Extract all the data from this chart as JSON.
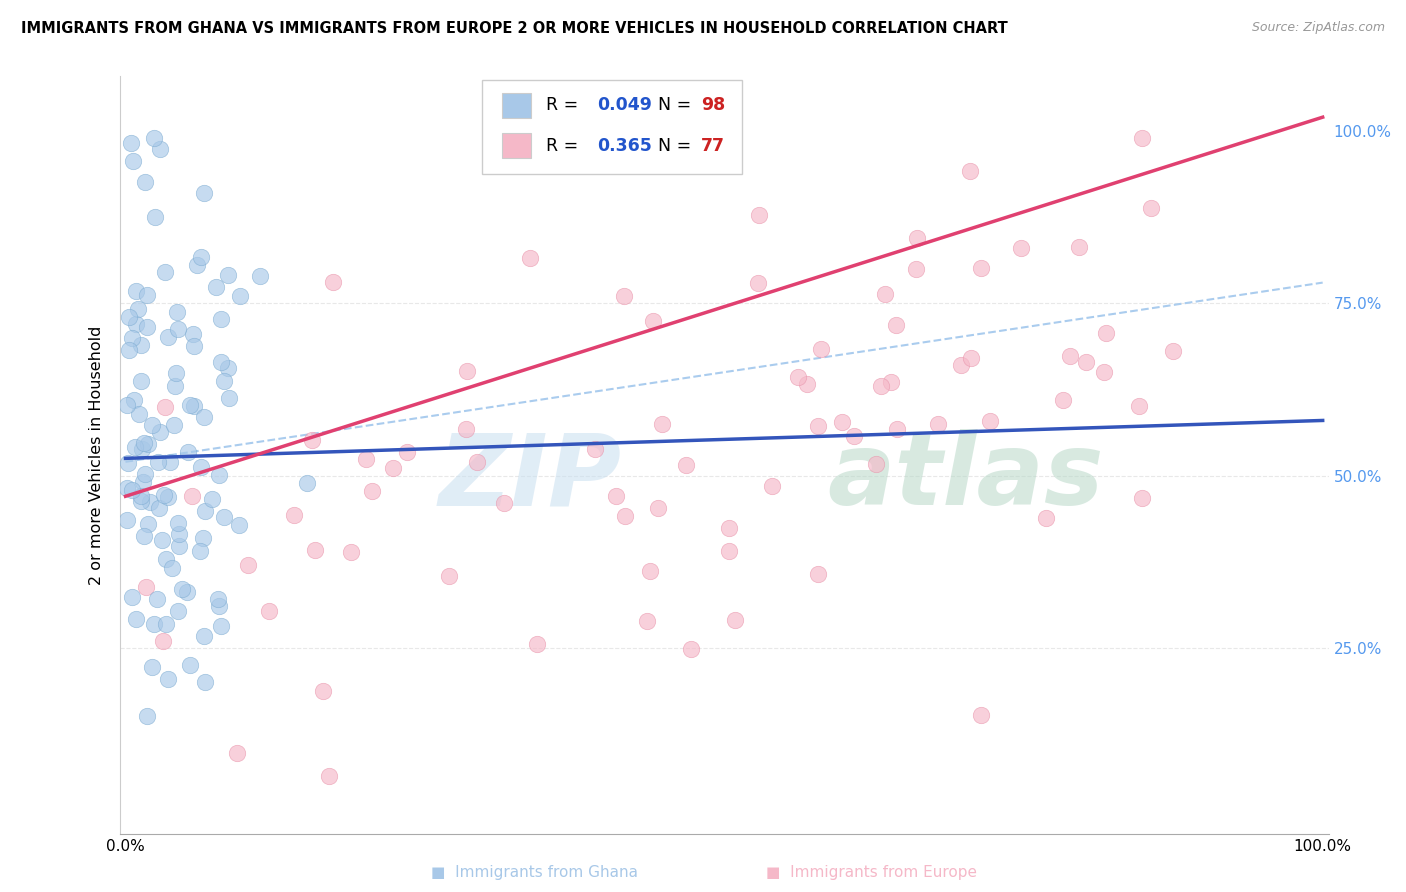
{
  "title": "IMMIGRANTS FROM GHANA VS IMMIGRANTS FROM EUROPE 2 OR MORE VEHICLES IN HOUSEHOLD CORRELATION CHART",
  "source": "Source: ZipAtlas.com",
  "ylabel": "2 or more Vehicles in Household",
  "ghana_color": "#a8c8e8",
  "ghana_edge_color": "#7aaad0",
  "europe_color": "#f5b8c8",
  "europe_edge_color": "#e890a8",
  "ghana_line_color": "#3355bb",
  "europe_line_color": "#e04070",
  "dash_line_color": "#aaccee",
  "R_color": "#2255cc",
  "N_color": "#cc2222",
  "grid_color": "#e8e8e8",
  "ghana_R": 0.049,
  "ghana_N": 98,
  "europe_R": 0.365,
  "europe_N": 77,
  "watermark_zip": "#c8dff0",
  "watermark_atlas": "#b8d8c8"
}
